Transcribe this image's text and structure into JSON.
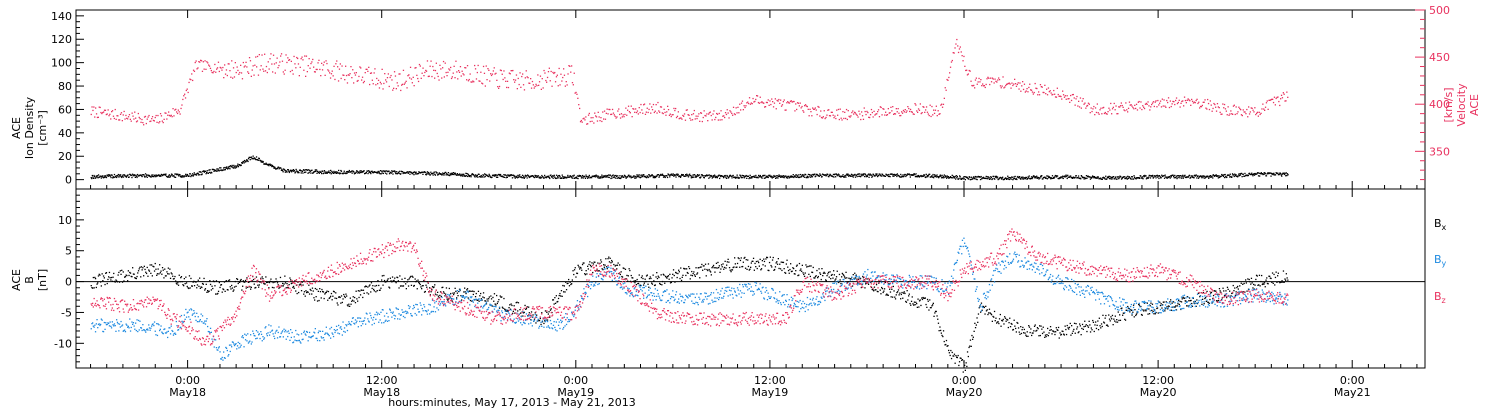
{
  "chart_data": [
    {
      "type": "scatter",
      "panel": "top",
      "ylabel_left": [
        "ACE",
        "Ion Density",
        "[cm⁻³]"
      ],
      "ylabel_right": [
        "ACE",
        "Velocity",
        "[km/s]"
      ],
      "ylim_left": [
        -8,
        145
      ],
      "ylim_right": [
        310,
        500
      ],
      "y_ticks_left": [
        "0",
        "20",
        "40",
        "60",
        "80",
        "100",
        "120",
        "140"
      ],
      "y_ticks_right": [
        "350",
        "400",
        "450",
        "500"
      ],
      "grid": false,
      "series": [
        {
          "name": "Ion Density",
          "axis": "left",
          "color": "#000000",
          "x_hours": [
            -6,
            -3,
            0,
            3,
            4,
            5,
            6,
            9,
            12,
            15,
            18,
            21,
            24,
            27,
            30,
            33,
            36,
            39,
            42,
            45,
            47,
            48,
            51,
            54,
            57,
            60,
            63,
            66,
            68
          ],
          "y": [
            3,
            4,
            4,
            12,
            20,
            13,
            8,
            7,
            7,
            6,
            4,
            3,
            3,
            3,
            4,
            3,
            3,
            4,
            4,
            4,
            3,
            2,
            2,
            3,
            2,
            3,
            3,
            5,
            5
          ]
        },
        {
          "name": "Velocity",
          "axis": "right",
          "color": "#e8325f",
          "x_hours": [
            -6,
            -4,
            -2,
            -0.5,
            0.5,
            3,
            5,
            8,
            11,
            13,
            15,
            17,
            19,
            21,
            23.8,
            24.3,
            26,
            29,
            31,
            33,
            35,
            37,
            39,
            41,
            43,
            45,
            46.5,
            47.5,
            48.5,
            50,
            52,
            54,
            56,
            59,
            62,
            64,
            66,
            68
          ],
          "y": [
            393,
            388,
            383,
            395,
            442,
            437,
            445,
            440,
            430,
            425,
            437,
            436,
            428,
            425,
            432,
            383,
            390,
            397,
            388,
            388,
            405,
            400,
            392,
            389,
            393,
            396,
            392,
            466,
            423,
            425,
            418,
            412,
            395,
            398,
            405,
            395,
            392,
            410
          ]
        }
      ]
    },
    {
      "type": "line",
      "panel": "bottom",
      "ylabel_left": [
        "ACE",
        "B",
        "[nT]"
      ],
      "ylim": [
        -14,
        15
      ],
      "y_ticks": [
        "-10",
        "-5",
        "0",
        "5",
        "10"
      ],
      "zero_line": true,
      "grid": false,
      "legend_position": "right",
      "series": [
        {
          "name": "Bx",
          "label_main": "B",
          "label_sub": "x",
          "color": "#000000",
          "x_hours": [
            -6,
            -4,
            -2,
            0,
            2,
            4,
            6,
            8,
            10,
            12,
            14,
            16,
            18,
            20,
            22,
            24,
            26,
            28,
            30,
            32,
            34,
            36,
            38,
            40,
            42,
            44,
            45,
            46,
            47,
            48,
            49,
            50,
            51,
            52,
            54,
            56,
            58,
            60,
            62,
            64,
            66,
            68
          ],
          "y": [
            0,
            1,
            2,
            0,
            -1,
            0,
            0,
            -2,
            -3,
            0,
            0,
            -2,
            -2,
            -4,
            -6,
            2,
            3,
            0,
            1,
            2,
            3,
            3,
            2,
            1,
            0,
            -2,
            -3,
            -4,
            -11,
            -14,
            -4,
            -6,
            -7,
            -8,
            -8,
            -7,
            -5,
            -4,
            -3,
            -2,
            0,
            1
          ]
        },
        {
          "name": "By",
          "label_main": "B",
          "label_sub": "y",
          "color": "#1e8ae0",
          "x_hours": [
            -6,
            -3,
            -1,
            0,
            1,
            2,
            3,
            5,
            7,
            9,
            11,
            13,
            15,
            17,
            19,
            21,
            23,
            24,
            25,
            26,
            27,
            29,
            31,
            33,
            35,
            36,
            38,
            40,
            42,
            44,
            46,
            47,
            48,
            49,
            50,
            51,
            52,
            54,
            56,
            58,
            60,
            62,
            64,
            66,
            68
          ],
          "y": [
            -7,
            -7,
            -8,
            -5,
            -6,
            -12,
            -10,
            -8,
            -9,
            -8,
            -6,
            -5,
            -4,
            -2,
            -5,
            -6,
            -7,
            -4,
            0,
            2,
            -1,
            -2,
            -3,
            -2,
            -1,
            -2,
            -4,
            -1,
            1,
            0,
            0,
            -1,
            7,
            -4,
            2,
            4,
            3,
            0,
            -2,
            -4,
            -4,
            -3,
            -3,
            -2,
            -3
          ]
        },
        {
          "name": "Bz",
          "label_main": "B",
          "label_sub": "z",
          "color": "#e8325f",
          "x_hours": [
            -6,
            -4,
            -2,
            -1,
            0,
            1,
            2,
            3,
            4,
            5,
            7,
            9,
            11,
            13,
            14,
            15,
            17,
            19,
            21,
            23,
            24,
            25,
            26,
            27,
            29,
            31,
            33,
            35,
            37,
            38,
            40,
            42,
            44,
            46,
            47,
            48,
            50,
            51,
            52,
            54,
            56,
            58,
            60,
            62,
            64,
            66,
            68
          ],
          "y": [
            -3,
            -4,
            -3,
            -6,
            -7,
            -10,
            -8,
            -5,
            2,
            -2,
            0,
            2,
            4,
            6,
            6,
            -2,
            -4,
            -6,
            -5,
            -5,
            -5,
            2,
            2,
            0,
            -5,
            -6,
            -6,
            -6,
            -6,
            0,
            -2,
            0,
            0,
            0,
            -2,
            2,
            4,
            8,
            5,
            3,
            2,
            1,
            2,
            0,
            -3,
            -2,
            -3
          ]
        }
      ]
    }
  ],
  "x_axis": {
    "range_hours": [
      -6.9,
      76.5
    ],
    "ticks": [
      {
        "hours": 0,
        "time": "0:00",
        "date": "May18"
      },
      {
        "hours": 12,
        "time": "12:00",
        "date": "May18"
      },
      {
        "hours": 24,
        "time": "0:00",
        "date": "May19"
      },
      {
        "hours": 36,
        "time": "12:00",
        "date": "May19"
      },
      {
        "hours": 48,
        "time": "0:00",
        "date": "May20"
      },
      {
        "hours": 60,
        "time": "12:00",
        "date": "May20"
      },
      {
        "hours": 72,
        "time": "0:00",
        "date": "May21"
      }
    ],
    "label": "hours:minutes, May 17, 2013 - May 21, 2013"
  },
  "colors": {
    "density": "#000000",
    "velocity": "#e8325f",
    "bx": "#000000",
    "by": "#1e8ae0",
    "bz": "#e8325f"
  }
}
